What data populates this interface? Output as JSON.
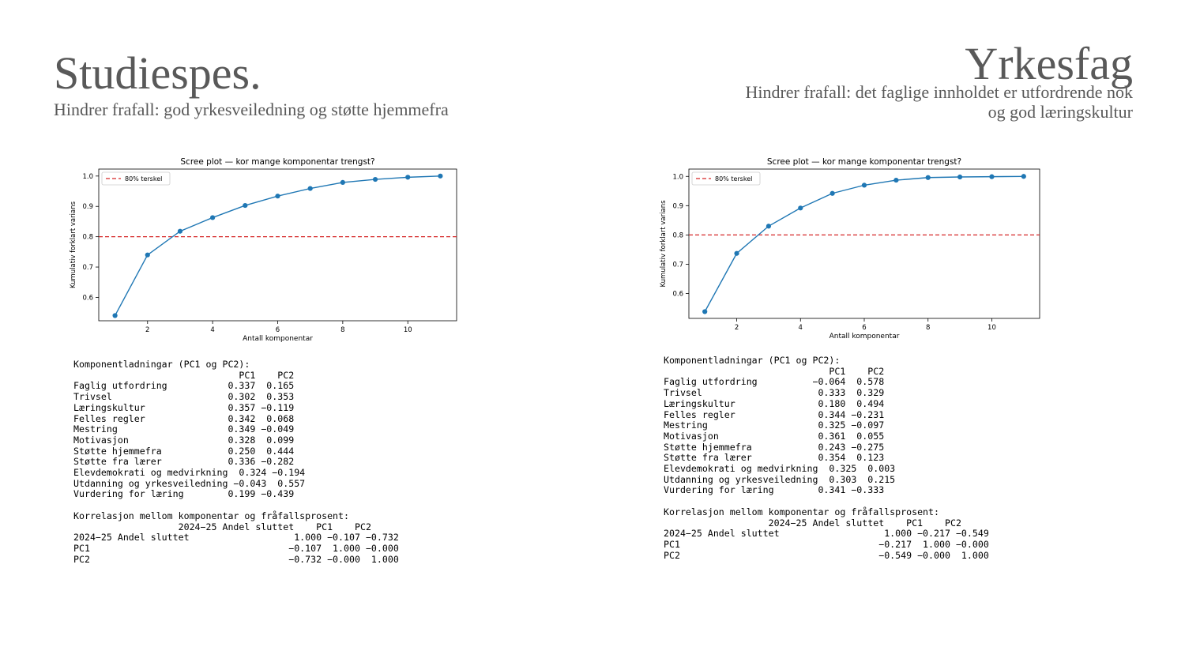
{
  "left": {
    "title": "Studiespes.",
    "subtitle": "Hindrer frafall: god yrkesveiledning og støtte hjemmefra",
    "loadings_text": "Komponentladningar (PC1 og PC2):\n                              PC1    PC2\nFaglig utfordring           0.337  0.165\nTrivsel                     0.302  0.353\nLæringskultur               0.357 −0.119\nFelles regler               0.342  0.068\nMestring                    0.349 −0.049\nMotivasjon                  0.328  0.099\nStøtte hjemmefra            0.250  0.444\nStøtte fra lærer            0.336 −0.282\nElevdemokrati og medvirkning  0.324 −0.194\nUtdanning og yrkesveiledning −0.043  0.557\nVurdering for læring        0.199 −0.439\n\nKorrelasjon mellom komponentar og fråfallsprosent:\n                   2024−25 Andel sluttet    PC1    PC2\n2024−25 Andel sluttet                   1.000 −0.107 −0.732\nPC1                                    −0.107  1.000 −0.000\nPC2                                    −0.732 −0.000  1.000"
  },
  "right": {
    "title": "Yrkesfag",
    "subtitle_line1": "Hindrer frafall: det faglige innholdet er utfordrende nok",
    "subtitle_line2": "og god læringskultur",
    "loadings_text": "Komponentladningar (PC1 og PC2):\n                              PC1    PC2\nFaglig utfordring          −0.064  0.578\nTrivsel                     0.333  0.329\nLæringskultur               0.180  0.494\nFelles regler               0.344 −0.231\nMestring                    0.325 −0.097\nMotivasjon                  0.361  0.055\nStøtte hjemmefra            0.243 −0.275\nStøtte fra lærer            0.354  0.123\nElevdemokrati og medvirkning  0.325  0.003\nUtdanning og yrkesveiledning  0.303  0.215\nVurdering for læring        0.341 −0.333\n\nKorrelasjon mellom komponentar og fråfallsprosent:\n                   2024−25 Andel sluttet    PC1    PC2\n2024−25 Andel sluttet                   1.000 −0.217 −0.549\nPC1                                    −0.217  1.000 −0.000\nPC2                                    −0.549 −0.000  1.000"
  },
  "chart_data": [
    {
      "type": "line",
      "title": "Scree plot — kor mange komponentar trengst?",
      "xlabel": "Antall komponentar",
      "ylabel": "Kumulativ forklart varians",
      "x": [
        1,
        2,
        3,
        4,
        5,
        6,
        7,
        8,
        9,
        10,
        11
      ],
      "series": [
        {
          "values": [
            0.54,
            0.74,
            0.818,
            0.863,
            0.903,
            0.934,
            0.959,
            0.979,
            0.989,
            0.996,
            1.0
          ],
          "color": "#1f77b4"
        }
      ],
      "threshold": {
        "label": "80% terskel",
        "value": 0.8,
        "color": "#d62728"
      },
      "xticks": [
        2,
        4,
        6,
        8,
        10
      ],
      "yticks": [
        0.6,
        0.7,
        0.8,
        0.9,
        1.0
      ],
      "xlim": [
        0.5,
        11.5
      ],
      "ylim": [
        0.523,
        1.023
      ],
      "legend": "top-left",
      "grid": false
    },
    {
      "type": "line",
      "title": "Scree plot — kor mange komponentar trengst?",
      "xlabel": "Antall komponentar",
      "ylabel": "Kumulativ forklart varians",
      "x": [
        1,
        2,
        3,
        4,
        5,
        6,
        7,
        8,
        9,
        10,
        11
      ],
      "series": [
        {
          "values": [
            0.538,
            0.737,
            0.83,
            0.892,
            0.942,
            0.97,
            0.987,
            0.996,
            0.998,
            0.999,
            1.0
          ],
          "color": "#1f77b4"
        }
      ],
      "threshold": {
        "label": "80% terskel",
        "value": 0.8,
        "color": "#d62728"
      },
      "xticks": [
        2,
        4,
        6,
        8,
        10
      ],
      "yticks": [
        0.6,
        0.7,
        0.8,
        0.9,
        1.0
      ],
      "xlim": [
        0.5,
        11.5
      ],
      "ylim": [
        0.515,
        1.025
      ],
      "legend": "top-left",
      "grid": false
    }
  ]
}
